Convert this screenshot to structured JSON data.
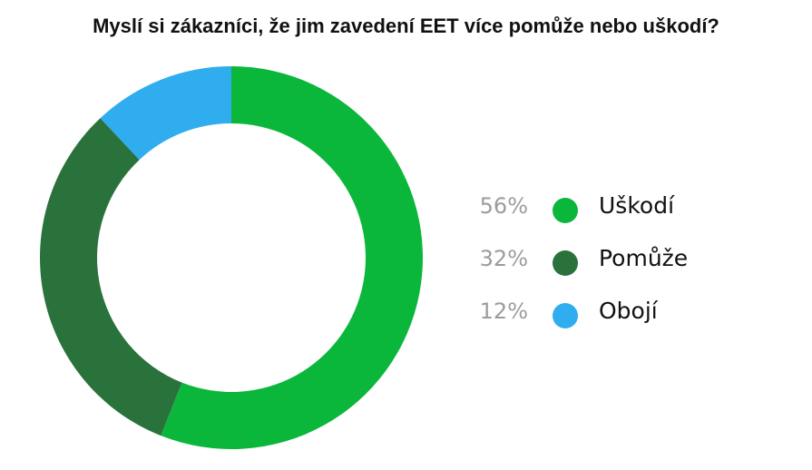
{
  "chart_data": {
    "type": "pie",
    "title": "Myslí si zákazníci, že jim zavedení EET více pomůže nebo uškodí?",
    "categories": [
      "Uškodí",
      "Pomůže",
      "Obojí"
    ],
    "values": [
      56,
      32,
      12
    ],
    "value_labels": [
      "56%",
      "32%",
      "12%"
    ],
    "colors": [
      "#0ab73b",
      "#2a723c",
      "#2fadee"
    ],
    "legend": "right",
    "donut": true
  }
}
